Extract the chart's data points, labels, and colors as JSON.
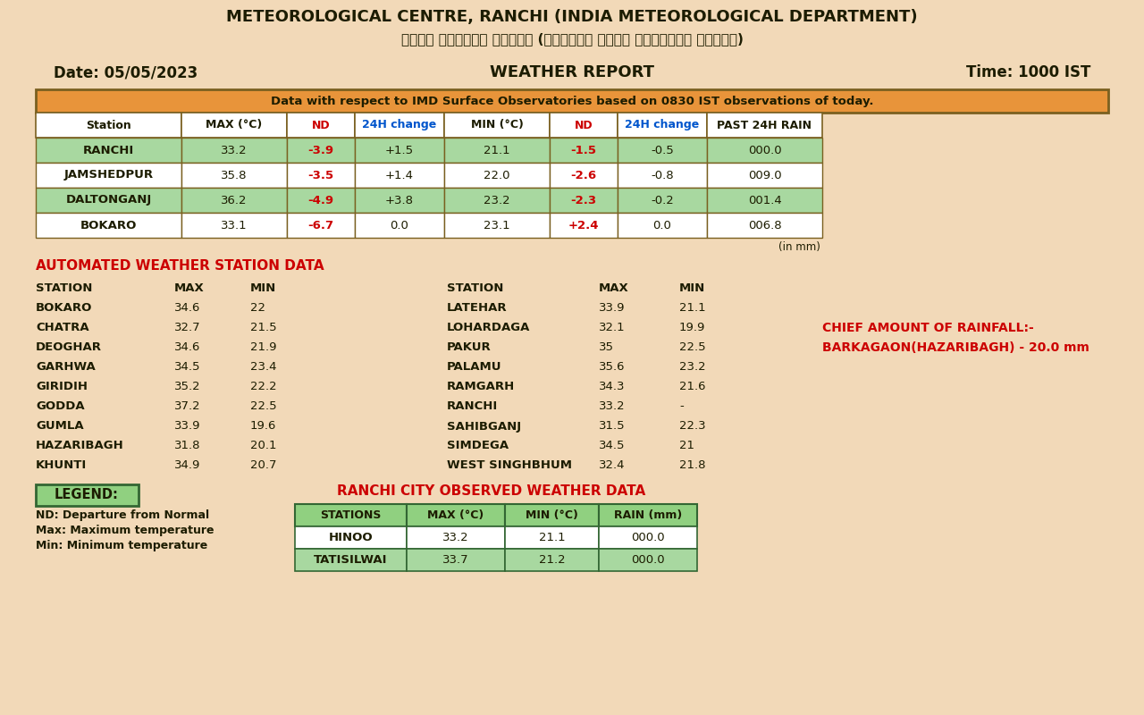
{
  "bg_color": "#F2D9B8",
  "title1": "METEOROLOGICAL CENTRE, RANCHI (INDIA METEOROLOGICAL DEPARTMENT)",
  "title2": "मौसम केंद्र रांची (भारतीय मौसम विज्ञान विभाग)",
  "date_str": "Date: 05/05/2023",
  "report_str": "WEATHER REPORT",
  "time_str": "Time: 1000 IST",
  "obs_note": "Data with respect to IMD Surface Observatories based on 0830 IST observations of today.",
  "main_table_headers": [
    "Station",
    "MAX (°C)",
    "ND",
    "24H change",
    "MIN (°C)",
    "ND",
    "24H change",
    "PAST 24H RAIN"
  ],
  "main_table_data": [
    [
      "RANCHI",
      "33.2",
      "-3.9",
      "+1.5",
      "21.1",
      "-1.5",
      "-0.5",
      "000.0",
      "green"
    ],
    [
      "JAMSHEDPUR",
      "35.8",
      "-3.5",
      "+1.4",
      "22.0",
      "-2.6",
      "-0.8",
      "009.0",
      "white"
    ],
    [
      "DALTONGANJ",
      "36.2",
      "-4.9",
      "+3.8",
      "23.2",
      "-2.3",
      "-0.2",
      "001.4",
      "green"
    ],
    [
      "BOKARO",
      "33.1",
      "-6.7",
      "0.0",
      "23.1",
      "+2.4",
      "0.0",
      "006.8",
      "white"
    ]
  ],
  "nd_col_indices": [
    2,
    5
  ],
  "change_col_indices": [
    3,
    6
  ],
  "aws_title": "AUTOMATED WEATHER STATION DATA",
  "aws_left": [
    [
      "STATION",
      "MAX",
      "MIN"
    ],
    [
      "BOKARO",
      "34.6",
      "22"
    ],
    [
      "CHATRA",
      "32.7",
      "21.5"
    ],
    [
      "DEOGHAR",
      "34.6",
      "21.9"
    ],
    [
      "GARHWA",
      "34.5",
      "23.4"
    ],
    [
      "GIRIDIH",
      "35.2",
      "22.2"
    ],
    [
      "GODDA",
      "37.2",
      "22.5"
    ],
    [
      "GUMLA",
      "33.9",
      "19.6"
    ],
    [
      "HAZARIBAGH",
      "31.8",
      "20.1"
    ],
    [
      "KHUNTI",
      "34.9",
      "20.7"
    ]
  ],
  "aws_right": [
    [
      "STATION",
      "MAX",
      "MIN"
    ],
    [
      "LATEHAR",
      "33.9",
      "21.1"
    ],
    [
      "LOHARDAGA",
      "32.1",
      "19.9"
    ],
    [
      "PAKUR",
      "35",
      "22.5"
    ],
    [
      "PALAMU",
      "35.6",
      "23.2"
    ],
    [
      "RAMGARH",
      "34.3",
      "21.6"
    ],
    [
      "RANCHI",
      "33.2",
      "-"
    ],
    [
      "SAHIBGANJ",
      "31.5",
      "22.3"
    ],
    [
      "SIMDEGA",
      "34.5",
      "21"
    ],
    [
      "WEST SINGHBHUM",
      "32.4",
      "21.8"
    ]
  ],
  "rainfall_line1": "CHIEF AMOUNT OF RAINFALL:-",
  "rainfall_line2": "BARKAGAON(HAZARIBAGH) - 20.0 mm",
  "legend_title": "LEGEND:",
  "legend_items": [
    "ND: Departure from Normal",
    "Max: Maximum temperature",
    "Min: Minimum temperature"
  ],
  "ranchi_title": "RANCHI CITY OBSERVED WEATHER DATA",
  "ranchi_headers": [
    "STATIONS",
    "MAX (°C)",
    "MIN (°C)",
    "RAIN (mm)"
  ],
  "ranchi_data": [
    [
      "HINOO",
      "33.2",
      "21.1",
      "000.0"
    ],
    [
      "TATISILWAI",
      "33.7",
      "21.2",
      "000.0"
    ]
  ],
  "color_green_row": "#A8D8A0",
  "color_red": "#CC0000",
  "color_blue": "#0055CC",
  "color_dark": "#1C1C00",
  "header_bg": "#E8943A",
  "table_border": "#7A6020",
  "green_header": "#90D080",
  "in_mm_color": "#1C1C00"
}
